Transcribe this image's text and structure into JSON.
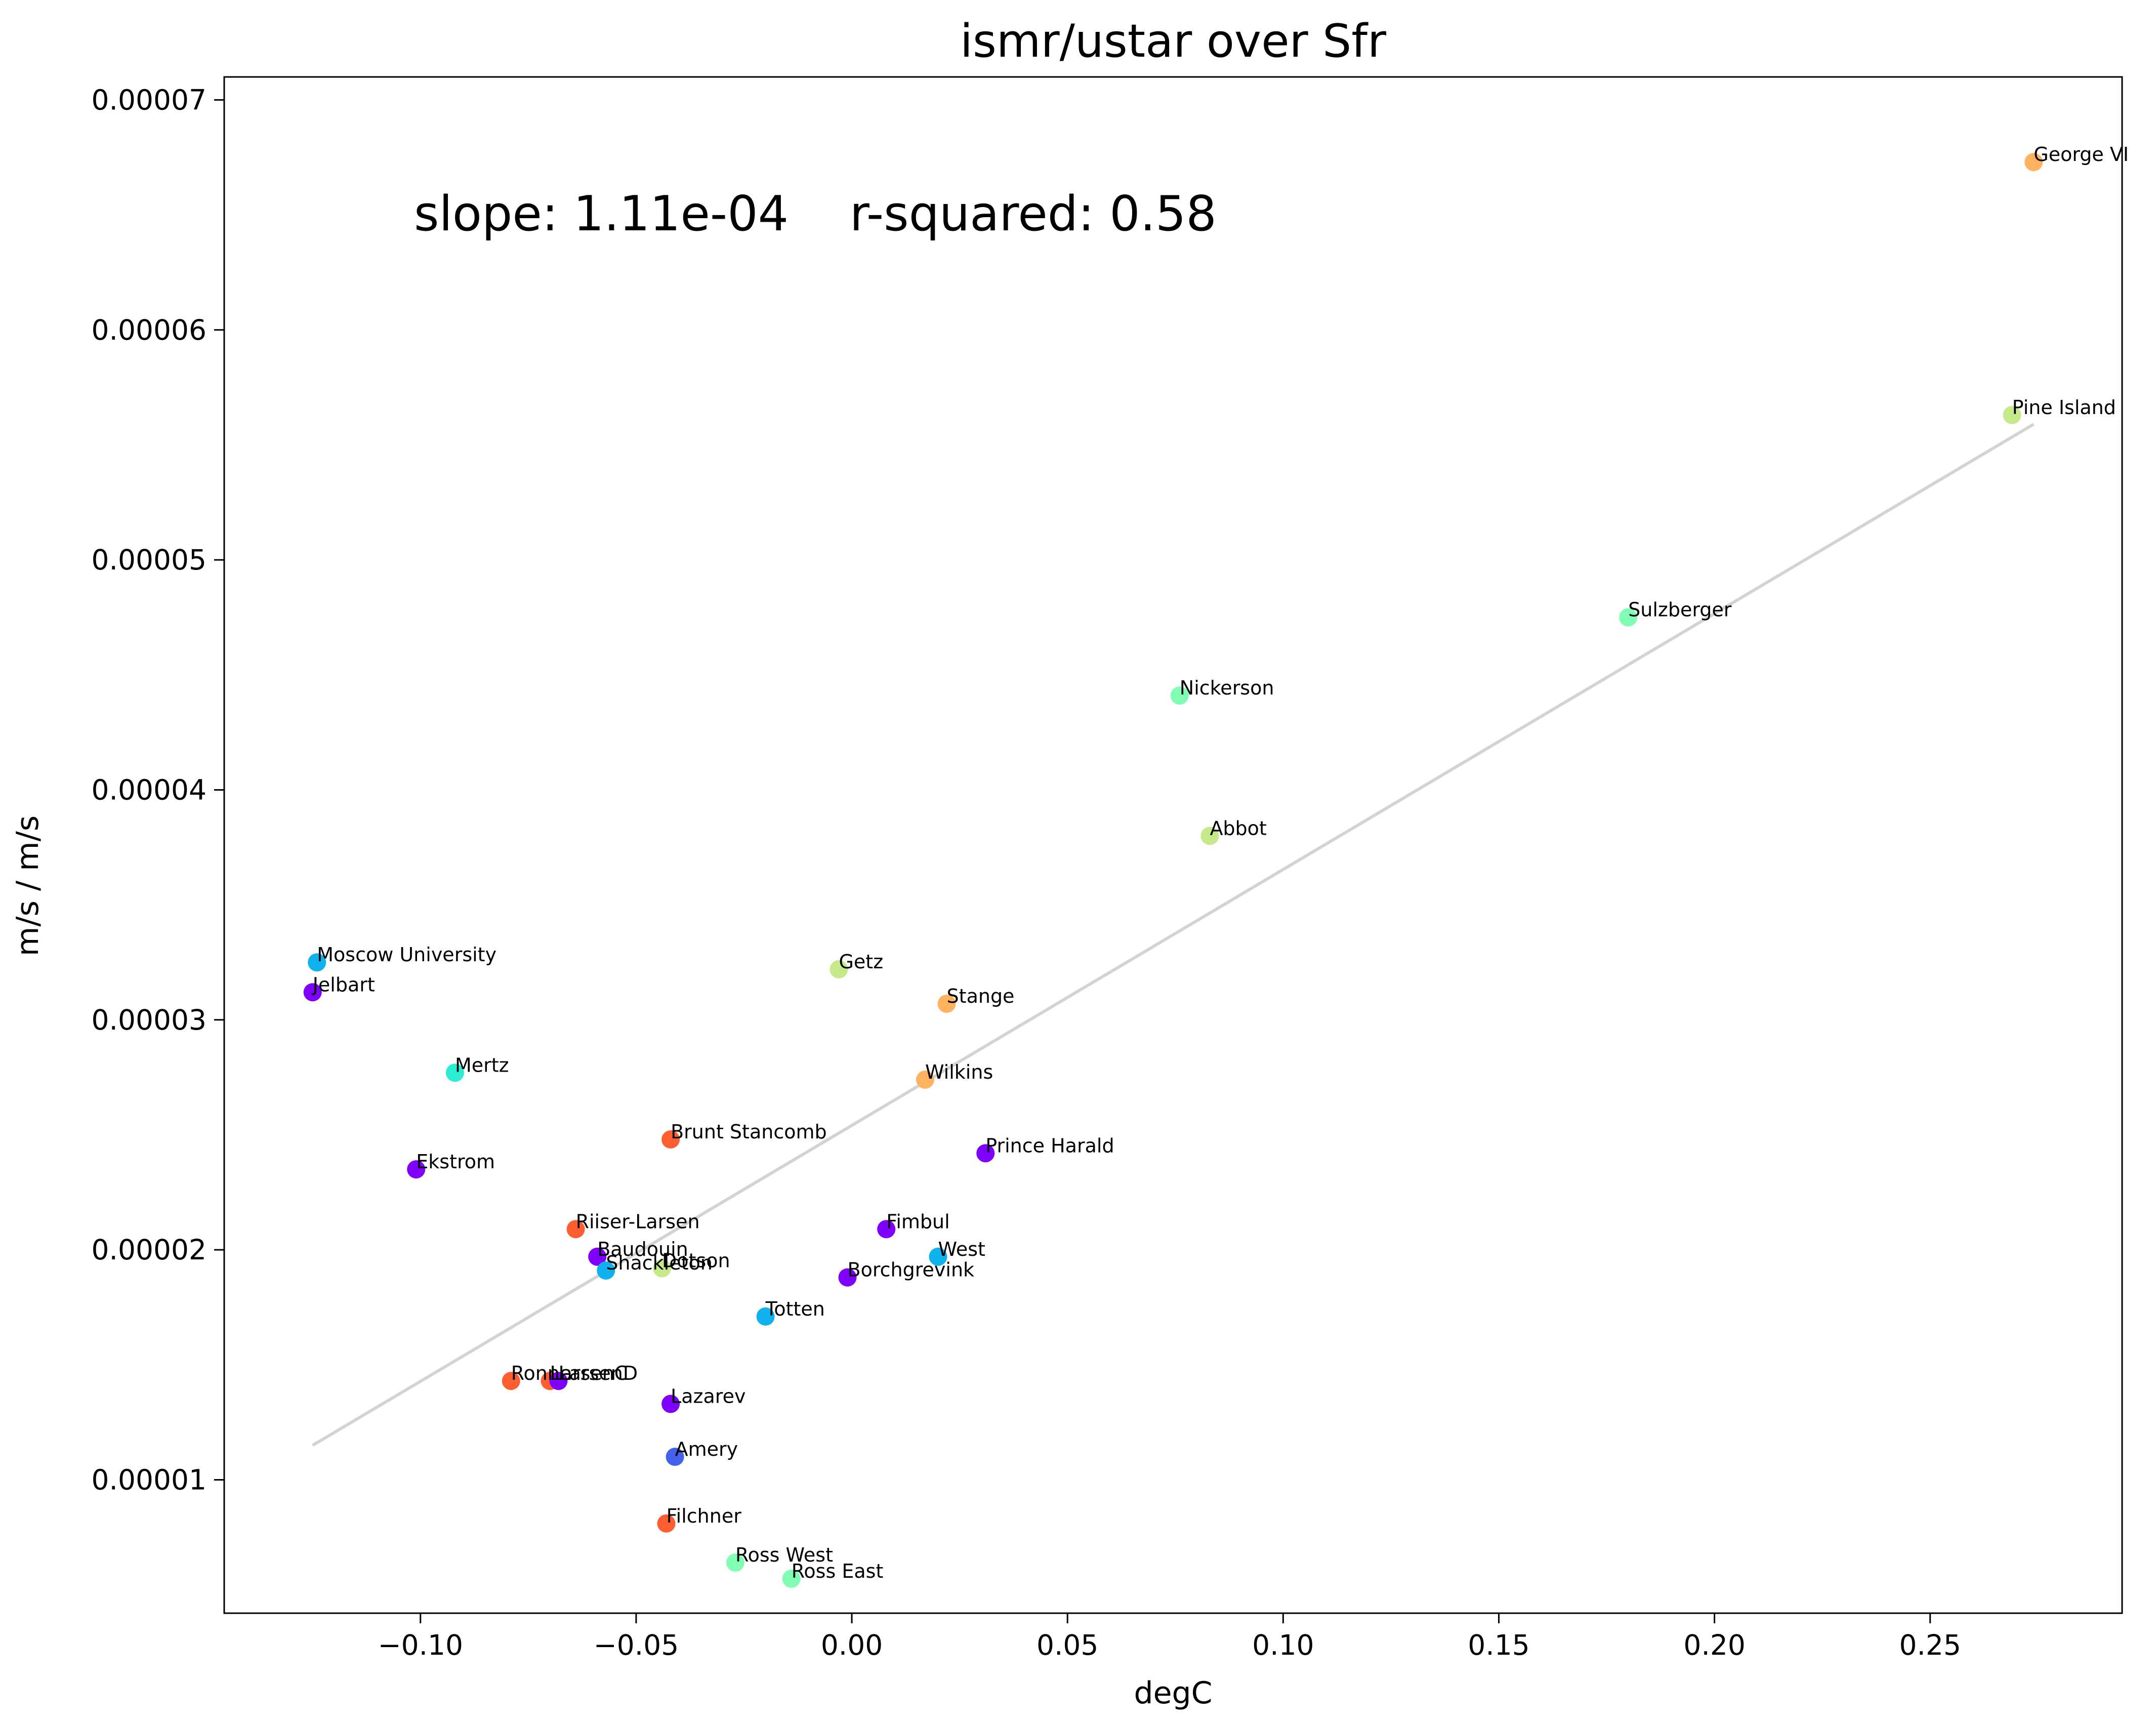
{
  "chart_data": {
    "type": "scatter",
    "title": "ismr/ustar over Sfr",
    "xlabel": "degC",
    "ylabel": "m/s / m/s",
    "xlim": [
      -0.1455,
      0.2945
    ],
    "ylim": [
      4.2e-06,
      7.1e-05
    ],
    "xticks": [
      -0.1,
      -0.05,
      0.0,
      0.05,
      0.1,
      0.15,
      0.2,
      0.25
    ],
    "xtick_labels": [
      "−0.10",
      "−0.05",
      "0.00",
      "0.05",
      "0.10",
      "0.15",
      "0.20",
      "0.25"
    ],
    "yticks": [
      1e-05,
      2e-05,
      3e-05,
      4e-05,
      5e-05,
      6e-05,
      7e-05
    ],
    "ytick_labels": [
      "0.00001",
      "0.00002",
      "0.00003",
      "0.00004",
      "0.00005",
      "0.00006",
      "0.00007"
    ],
    "grid": false,
    "annotation": "slope: 1.11e-04    r-squared: 0.58",
    "fit_line": {
      "color": "#d3d3d3",
      "x": [
        -0.125,
        0.274
      ],
      "y": [
        1.15e-05,
        5.59e-05
      ]
    },
    "points": [
      {
        "name": "George VI",
        "x": 0.274,
        "y": 6.73e-05,
        "color": "#ffb360"
      },
      {
        "name": "Pine Island",
        "x": 0.269,
        "y": 5.63e-05,
        "color": "#c6ea8a"
      },
      {
        "name": "Sulzberger",
        "x": 0.18,
        "y": 4.75e-05,
        "color": "#80ffb4"
      },
      {
        "name": "Nickerson",
        "x": 0.076,
        "y": 4.41e-05,
        "color": "#80ffb4"
      },
      {
        "name": "Abbot",
        "x": 0.083,
        "y": 3.8e-05,
        "color": "#c6ea8a"
      },
      {
        "name": "Moscow University",
        "x": -0.124,
        "y": 3.25e-05,
        "color": "#10b2ee"
      },
      {
        "name": "Jelbart",
        "x": -0.125,
        "y": 3.12e-05,
        "color": "#7f00ff"
      },
      {
        "name": "Getz",
        "x": -0.003,
        "y": 3.22e-05,
        "color": "#c6ea8a"
      },
      {
        "name": "Stange",
        "x": 0.022,
        "y": 3.07e-05,
        "color": "#ffb360"
      },
      {
        "name": "Mertz",
        "x": -0.092,
        "y": 2.77e-05,
        "color": "#2aeed2"
      },
      {
        "name": "Wilkins",
        "x": 0.017,
        "y": 2.74e-05,
        "color": "#ffb360"
      },
      {
        "name": "Brunt Stancomb",
        "x": -0.042,
        "y": 2.48e-05,
        "color": "#ff5e30"
      },
      {
        "name": "Prince Harald",
        "x": 0.031,
        "y": 2.42e-05,
        "color": "#7f00ff"
      },
      {
        "name": "Ekstrom",
        "x": -0.101,
        "y": 2.35e-05,
        "color": "#7f00ff"
      },
      {
        "name": "Riiser-Larsen",
        "x": -0.064,
        "y": 2.09e-05,
        "color": "#ff5e30"
      },
      {
        "name": "Fimbul",
        "x": 0.008,
        "y": 2.09e-05,
        "color": "#7f00ff"
      },
      {
        "name": "Baudouin",
        "x": -0.059,
        "y": 1.97e-05,
        "color": "#7f00ff"
      },
      {
        "name": "West",
        "x": 0.02,
        "y": 1.97e-05,
        "color": "#10b2ee"
      },
      {
        "name": "Shackleton",
        "x": -0.057,
        "y": 1.91e-05,
        "color": "#10b2ee"
      },
      {
        "name": "Dotson",
        "x": -0.044,
        "y": 1.92e-05,
        "color": "#c6ea8a"
      },
      {
        "name": "Borchgrevink",
        "x": -0.001,
        "y": 1.88e-05,
        "color": "#7f00ff"
      },
      {
        "name": "Totten",
        "x": -0.02,
        "y": 1.71e-05,
        "color": "#10b2ee"
      },
      {
        "name": "Ronne",
        "x": -0.079,
        "y": 1.43e-05,
        "color": "#ff5e30"
      },
      {
        "name": "LarsenC",
        "x": -0.07,
        "y": 1.43e-05,
        "color": "#ff5e30"
      },
      {
        "name": "LarsenD",
        "x": -0.068,
        "y": 1.43e-05,
        "color": "#7f00ff"
      },
      {
        "name": "Lazarev",
        "x": -0.042,
        "y": 1.33e-05,
        "color": "#7f00ff"
      },
      {
        "name": "Amery",
        "x": -0.041,
        "y": 1.1e-05,
        "color": "#4362e9"
      },
      {
        "name": "Filchner",
        "x": -0.043,
        "y": 8.1e-06,
        "color": "#ff5e30"
      },
      {
        "name": "Ross West",
        "x": -0.027,
        "y": 6.4e-06,
        "color": "#80ffb4"
      },
      {
        "name": "Ross East",
        "x": -0.014,
        "y": 5.7e-06,
        "color": "#80ffb4"
      }
    ]
  }
}
